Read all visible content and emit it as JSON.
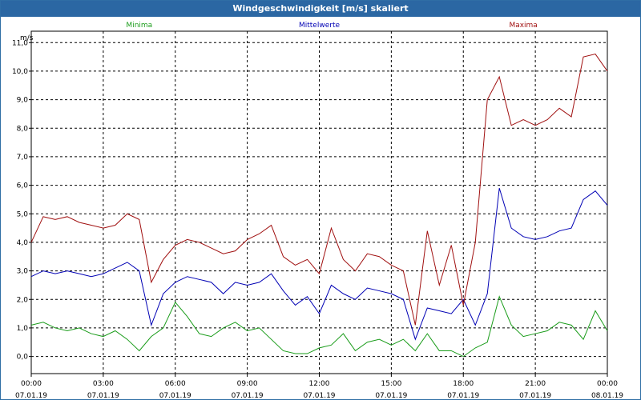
{
  "window": {
    "title": "Windgeschwindigkeit [m/s] skaliert"
  },
  "colors": {
    "titlebar": "#2b67a3",
    "minima": "#1a9c1a",
    "mittelwerte": "#0000b4",
    "maxima": "#a01010",
    "grid": "#000000"
  },
  "chart_data": {
    "type": "line",
    "title": "Windgeschwindigkeit [m/s] skaliert",
    "ylabel": "m/s",
    "xlabel": "",
    "ylim": [
      -0.6,
      11.4
    ],
    "y_ticks": [
      "0,0",
      "1,0",
      "2,0",
      "3,0",
      "4,0",
      "5,0",
      "6,0",
      "7,0",
      "8,0",
      "9,0",
      "10,0",
      "11,0"
    ],
    "x_ticks": [
      {
        "time": "00:00",
        "date": "07.01.19"
      },
      {
        "time": "03:00",
        "date": "07.01.19"
      },
      {
        "time": "06:00",
        "date": "07.01.19"
      },
      {
        "time": "09:00",
        "date": "07.01.19"
      },
      {
        "time": "12:00",
        "date": "07.01.19"
      },
      {
        "time": "15:00",
        "date": "07.01.19"
      },
      {
        "time": "18:00",
        "date": "07.01.19"
      },
      {
        "time": "21:00",
        "date": "07.01.19"
      },
      {
        "time": "00:00",
        "date": "08.01.19"
      }
    ],
    "x_hours": [
      0.0,
      0.5,
      1.0,
      1.5,
      2.0,
      2.5,
      3.0,
      3.5,
      4.0,
      4.5,
      5.0,
      5.5,
      6.0,
      6.5,
      7.0,
      7.5,
      8.0,
      8.5,
      9.0,
      9.5,
      10.0,
      10.5,
      11.0,
      11.5,
      12.0,
      12.5,
      13.0,
      13.5,
      14.0,
      14.5,
      15.0,
      15.5,
      16.0,
      16.5,
      17.0,
      17.5,
      18.0,
      18.5,
      19.0,
      19.5,
      20.0,
      20.5,
      21.0,
      21.5,
      22.0,
      22.5,
      23.0,
      23.5,
      24.0
    ],
    "grid": true,
    "series": [
      {
        "name": "Minima",
        "values": [
          1.1,
          1.2,
          1.0,
          0.9,
          1.0,
          0.8,
          0.7,
          0.9,
          0.6,
          0.2,
          0.7,
          1.0,
          1.9,
          1.4,
          0.8,
          0.7,
          1.0,
          1.2,
          0.9,
          1.0,
          0.6,
          0.2,
          0.1,
          0.1,
          0.3,
          0.4,
          0.8,
          0.2,
          0.5,
          0.6,
          0.4,
          0.6,
          0.2,
          0.8,
          0.2,
          0.2,
          0.0,
          0.3,
          0.5,
          2.1,
          1.1,
          0.7,
          0.8,
          0.9,
          1.2,
          1.1,
          0.6,
          1.6,
          0.9
        ]
      },
      {
        "name": "Mittelwerte",
        "values": [
          2.8,
          3.0,
          2.9,
          3.0,
          2.9,
          2.8,
          2.9,
          3.1,
          3.3,
          3.0,
          1.1,
          2.2,
          2.6,
          2.8,
          2.7,
          2.6,
          2.2,
          2.6,
          2.5,
          2.6,
          2.9,
          2.3,
          1.8,
          2.1,
          1.5,
          2.5,
          2.2,
          2.0,
          2.4,
          2.3,
          2.2,
          2.0,
          0.6,
          1.7,
          1.6,
          1.5,
          2.0,
          1.1,
          2.2,
          5.9,
          4.5,
          4.2,
          4.1,
          4.2,
          4.4,
          4.5,
          5.5,
          5.8,
          5.3
        ]
      },
      {
        "name": "Maxima",
        "values": [
          4.0,
          4.9,
          4.8,
          4.9,
          4.7,
          4.6,
          4.5,
          4.6,
          5.0,
          4.8,
          2.6,
          3.4,
          3.9,
          4.1,
          4.0,
          3.8,
          3.6,
          3.7,
          4.1,
          4.3,
          4.6,
          3.5,
          3.2,
          3.4,
          2.9,
          4.5,
          3.4,
          3.0,
          3.6,
          3.5,
          3.2,
          3.0,
          1.1,
          4.4,
          2.5,
          3.9,
          1.8,
          4.0,
          9.0,
          9.8,
          8.1,
          8.3,
          8.1,
          8.3,
          8.7,
          8.4,
          10.5,
          10.6,
          10.0
        ]
      }
    ]
  }
}
